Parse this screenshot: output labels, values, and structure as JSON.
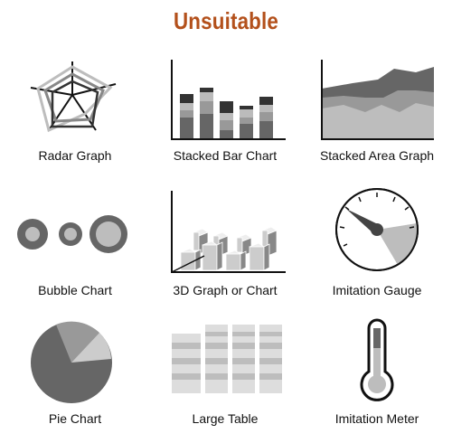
{
  "title": "Unsuitable",
  "colors": {
    "title": "#b3501b",
    "dark": "#555555",
    "mid": "#888888",
    "light": "#bdbdbd",
    "pale": "#dddddd",
    "ink": "#111111"
  },
  "items": [
    {
      "label": "Radar Graph",
      "icon": "radar-graph-icon"
    },
    {
      "label": "Stacked Bar Chart",
      "icon": "stacked-bar-chart-icon"
    },
    {
      "label": "Stacked Area Graph",
      "icon": "stacked-area-graph-icon"
    },
    {
      "label": "Bubble Chart",
      "icon": "bubble-chart-icon"
    },
    {
      "label": "3D Graph or Chart",
      "icon": "3d-graph-icon"
    },
    {
      "label": "Imitation Gauge",
      "icon": "imitation-gauge-icon"
    },
    {
      "label": "Pie Chart",
      "icon": "pie-chart-icon"
    },
    {
      "label": "Large Table",
      "icon": "large-table-icon"
    },
    {
      "label": "Imitation Meter",
      "icon": "imitation-meter-icon"
    }
  ]
}
